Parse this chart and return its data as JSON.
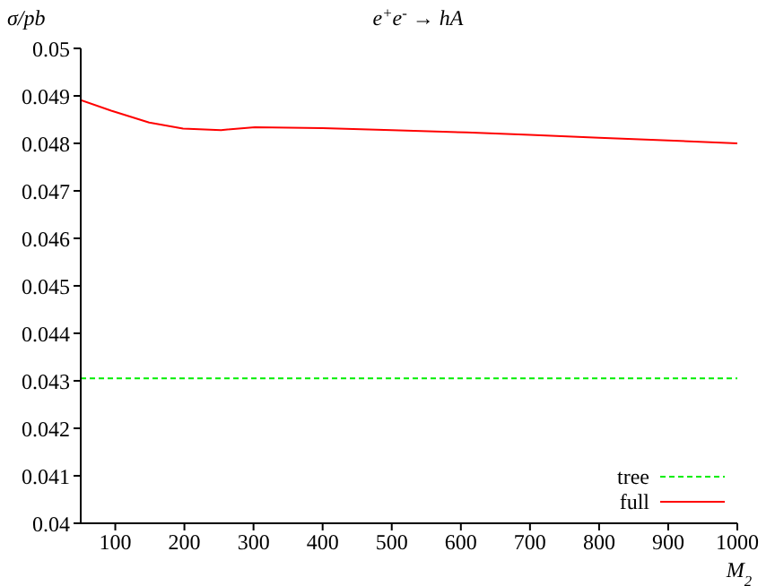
{
  "chart_data": {
    "type": "line",
    "title": "e$^{+}$e$^{-}$ → hA",
    "xlabel": "M$_{2}$",
    "ylabel": "σ/pb",
    "xlim": [
      50,
      1000
    ],
    "xticks": [
      100,
      200,
      300,
      400,
      500,
      600,
      700,
      800,
      900,
      1000
    ],
    "ylim": [
      0.04,
      0.05
    ],
    "yticks": [
      0.04,
      0.041,
      0.042,
      0.043,
      0.044,
      0.045,
      0.046,
      0.047,
      0.048,
      0.049,
      0.05
    ],
    "grid": false,
    "legend": "bottom right",
    "marker": "none",
    "series": [
      {
        "name": "tree",
        "color": "#00ee00",
        "line_style": "dashed",
        "x": [
          50,
          1000
        ],
        "values": [
          0.04305,
          0.04305
        ]
      },
      {
        "name": "full",
        "color": "#ff0000",
        "line_style": "solid",
        "x": [
          50,
          94,
          149,
          198,
          253,
          302,
          400,
          500,
          608,
          700,
          800,
          900,
          1000
        ],
        "values": [
          0.04891,
          0.04869,
          0.04844,
          0.04831,
          0.04828,
          0.04834,
          0.04832,
          0.04828,
          0.04823,
          0.04818,
          0.04812,
          0.04806,
          0.048
        ]
      }
    ]
  }
}
